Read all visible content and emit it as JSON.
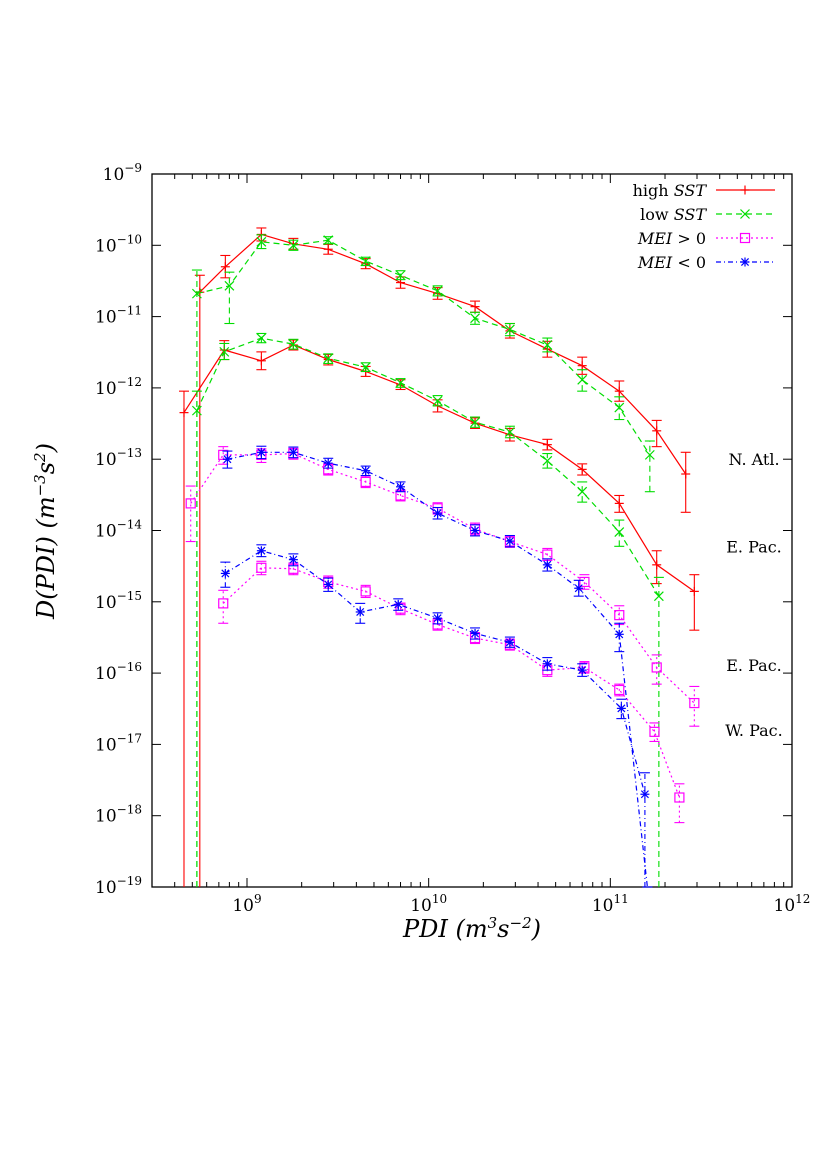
{
  "chart_data": {
    "type": "line",
    "xlabel": "PDI (m³s⁻²)",
    "ylabel": "D(PDI) (m⁻³s²)",
    "x_scale": "log",
    "y_scale": "log",
    "xlim": [
      300000000.0,
      1000000000000.0
    ],
    "ylim": [
      1e-19,
      1e-09
    ],
    "x_ticks": [
      {
        "value": 1000000000.0,
        "label": "10",
        "exp": "9"
      },
      {
        "value": 10000000000.0,
        "label": "10",
        "exp": "10"
      },
      {
        "value": 100000000000.0,
        "label": "10",
        "exp": "11"
      },
      {
        "value": 1000000000000.0,
        "label": "10",
        "exp": "12"
      }
    ],
    "y_ticks": [
      {
        "value": 1e-19,
        "label": "10",
        "exp": "−19"
      },
      {
        "value": 1e-18,
        "label": "10",
        "exp": "−18"
      },
      {
        "value": 1e-17,
        "label": "10",
        "exp": "−17"
      },
      {
        "value": 1e-16,
        "label": "10",
        "exp": "−16"
      },
      {
        "value": 1e-15,
        "label": "10",
        "exp": "−15"
      },
      {
        "value": 1e-14,
        "label": "10",
        "exp": "−14"
      },
      {
        "value": 1e-13,
        "label": "10",
        "exp": "−13"
      },
      {
        "value": 1e-12,
        "label": "10",
        "exp": "−12"
      },
      {
        "value": 1e-11,
        "label": "10",
        "exp": "−11"
      },
      {
        "value": 1e-10,
        "label": "10",
        "exp": "−10"
      },
      {
        "value": 1e-09,
        "label": "10",
        "exp": "−9"
      }
    ],
    "grid": false,
    "legend_position": "top-right",
    "legend": [
      {
        "name": "high SST",
        "prefix": "high ",
        "math": "SST",
        "color": "#ff0000",
        "dash": "none",
        "marker": "plus"
      },
      {
        "name": "low SST",
        "prefix": "low ",
        "math": "SST",
        "color": "#00dd00",
        "dash": "6,4",
        "marker": "cross"
      },
      {
        "name": "MEI > 0",
        "prefix": "",
        "math": "MEI",
        "suffix": " > 0",
        "color": "#ff00ff",
        "dash": "2,3",
        "marker": "square"
      },
      {
        "name": "MEI < 0",
        "prefix": "",
        "math": "MEI",
        "suffix": " < 0",
        "color": "#0000ff",
        "dash": "5,3,1,3",
        "marker": "star"
      }
    ],
    "region_labels": [
      {
        "text": "N. Atl.",
        "y": 1e-13
      },
      {
        "text": "E. Pac.",
        "y": 6e-15
      },
      {
        "text": "E. Pac.",
        "y": 1.3e-16
      },
      {
        "text": "W. Pac.",
        "y": 1.6e-17
      }
    ],
    "series": [
      {
        "group": "N. Atl.",
        "legend_index": 0,
        "color": "#ff0000",
        "dash": "none",
        "marker": "plus",
        "points": [
          {
            "x": 550000000.0,
            "y": 2.2e-11,
            "lo": 1e-19,
            "hi": 3.8e-11
          },
          {
            "x": 760000000.0,
            "y": 5e-11,
            "lo": 3.5e-11,
            "hi": 7.2e-11
          },
          {
            "x": 1200000000.0,
            "y": 1.42e-10,
            "lo": 1.15e-10,
            "hi": 1.75e-10
          },
          {
            "x": 1800000000.0,
            "y": 1.05e-10,
            "lo": 8.8e-11,
            "hi": 1.25e-10
          },
          {
            "x": 2800000000.0,
            "y": 8.8e-11,
            "lo": 7.5e-11,
            "hi": 1.03e-10
          },
          {
            "x": 4500000000.0,
            "y": 5.5e-11,
            "lo": 4.7e-11,
            "hi": 6.5e-11
          },
          {
            "x": 7000000000.0,
            "y": 3e-11,
            "lo": 2.5e-11,
            "hi": 3.6e-11
          },
          {
            "x": 11200000000.0,
            "y": 2.1e-11,
            "lo": 1.75e-11,
            "hi": 2.55e-11
          },
          {
            "x": 18000000000.0,
            "y": 1.38e-11,
            "lo": 1.15e-11,
            "hi": 1.65e-11
          },
          {
            "x": 28000000000.0,
            "y": 6.3e-12,
            "lo": 5e-12,
            "hi": 8e-12
          },
          {
            "x": 45000000000.0,
            "y": 3.5e-12,
            "lo": 2.7e-12,
            "hi": 4.5e-12
          },
          {
            "x": 70000000000.0,
            "y": 2.05e-12,
            "lo": 1.55e-12,
            "hi": 2.7e-12
          },
          {
            "x": 112000000000.0,
            "y": 9e-13,
            "lo": 6.5e-13,
            "hi": 1.25e-12
          },
          {
            "x": 180000000000.0,
            "y": 2.5e-13,
            "lo": 1.5e-13,
            "hi": 3.5e-13
          },
          {
            "x": 260000000000.0,
            "y": 6.2e-14,
            "lo": 1.8e-14,
            "hi": 1.25e-13
          }
        ]
      },
      {
        "group": "N. Atl.",
        "legend_index": 1,
        "color": "#00dd00",
        "dash": "6,4",
        "marker": "cross",
        "points": [
          {
            "x": 530000000.0,
            "y": 2.1e-11,
            "lo": 1e-19,
            "hi": 4.5e-11
          },
          {
            "x": 800000000.0,
            "y": 2.7e-11,
            "lo": 8e-12,
            "hi": 4.2e-11
          },
          {
            "x": 1200000000.0,
            "y": 1.12e-10,
            "lo": 9e-11,
            "hi": 1.4e-10
          },
          {
            "x": 1800000000.0,
            "y": 1e-10,
            "lo": 8.5e-11,
            "hi": 1.18e-10
          },
          {
            "x": 2800000000.0,
            "y": 1.18e-10,
            "lo": 1.05e-10,
            "hi": 1.32e-10
          },
          {
            "x": 4500000000.0,
            "y": 6e-11,
            "lo": 5.2e-11,
            "hi": 6.8e-11
          },
          {
            "x": 7000000000.0,
            "y": 3.8e-11,
            "lo": 3.3e-11,
            "hi": 4.4e-11
          },
          {
            "x": 11200000000.0,
            "y": 2.3e-11,
            "lo": 1.95e-11,
            "hi": 2.7e-11
          },
          {
            "x": 18000000000.0,
            "y": 9.5e-12,
            "lo": 7.8e-12,
            "hi": 1.15e-11
          },
          {
            "x": 28000000000.0,
            "y": 6.6e-12,
            "lo": 5.4e-12,
            "hi": 8e-12
          },
          {
            "x": 45000000000.0,
            "y": 4e-12,
            "lo": 3.2e-12,
            "hi": 5e-12
          },
          {
            "x": 70000000000.0,
            "y": 1.3e-12,
            "lo": 9e-13,
            "hi": 1.8e-12
          },
          {
            "x": 112000000000.0,
            "y": 5.3e-13,
            "lo": 3.6e-13,
            "hi": 7.5e-13
          },
          {
            "x": 165000000000.0,
            "y": 1.15e-13,
            "lo": 3.5e-14,
            "hi": 1.8e-13
          }
        ]
      },
      {
        "group": "E. Pac.",
        "legend_index": 0,
        "color": "#ff0000",
        "dash": "none",
        "marker": "plus",
        "points": [
          {
            "x": 450000000.0,
            "y": 4.5e-13,
            "lo": 1e-19,
            "hi": 9e-13
          },
          {
            "x": 750000000.0,
            "y": 3.4e-12,
            "lo": 2.5e-12,
            "hi": 4.6e-12
          },
          {
            "x": 1200000000.0,
            "y": 2.4e-12,
            "lo": 1.8e-12,
            "hi": 3.2e-12
          },
          {
            "x": 1800000000.0,
            "y": 4e-12,
            "lo": 3.4e-12,
            "hi": 4.7e-12
          },
          {
            "x": 2800000000.0,
            "y": 2.5e-12,
            "lo": 2.1e-12,
            "hi": 2.95e-12
          },
          {
            "x": 4500000000.0,
            "y": 1.7e-12,
            "lo": 1.45e-12,
            "hi": 2e-12
          },
          {
            "x": 7000000000.0,
            "y": 1.1e-12,
            "lo": 9.5e-13,
            "hi": 1.3e-12
          },
          {
            "x": 11200000000.0,
            "y": 5.6e-13,
            "lo": 4.6e-13,
            "hi": 6.8e-13
          },
          {
            "x": 18000000000.0,
            "y": 3.2e-13,
            "lo": 2.7e-13,
            "hi": 3.8e-13
          },
          {
            "x": 28000000000.0,
            "y": 2.2e-13,
            "lo": 1.8e-13,
            "hi": 2.7e-13
          },
          {
            "x": 45000000000.0,
            "y": 1.6e-13,
            "lo": 1.35e-13,
            "hi": 1.9e-13
          },
          {
            "x": 70000000000.0,
            "y": 7.2e-14,
            "lo": 6e-14,
            "hi": 8.6e-14
          },
          {
            "x": 112000000000.0,
            "y": 2.4e-14,
            "lo": 1.8e-14,
            "hi": 3.1e-14
          },
          {
            "x": 180000000000.0,
            "y": 3.3e-15,
            "lo": 1.8e-15,
            "hi": 5.2e-15
          },
          {
            "x": 290000000000.0,
            "y": 1.4e-15,
            "lo": 4e-16,
            "hi": 2.4e-15
          }
        ]
      },
      {
        "group": "E. Pac.",
        "legend_index": 1,
        "color": "#00dd00",
        "dash": "6,4",
        "marker": "cross",
        "points": [
          {
            "x": 530000000.0,
            "y": 4.8e-13,
            "lo": 1e-19,
            "hi": 9e-13
          },
          {
            "x": 750000000.0,
            "y": 3.2e-12,
            "lo": 2.5e-12,
            "hi": 4.2e-12
          },
          {
            "x": 1200000000.0,
            "y": 5e-12,
            "lo": 4.3e-12,
            "hi": 5.8e-12
          },
          {
            "x": 1800000000.0,
            "y": 4.1e-12,
            "lo": 3.5e-12,
            "hi": 4.8e-12
          },
          {
            "x": 2800000000.0,
            "y": 2.6e-12,
            "lo": 2.2e-12,
            "hi": 3e-12
          },
          {
            "x": 4500000000.0,
            "y": 1.95e-12,
            "lo": 1.7e-12,
            "hi": 2.25e-12
          },
          {
            "x": 7000000000.0,
            "y": 1.18e-12,
            "lo": 1.02e-12,
            "hi": 1.35e-12
          },
          {
            "x": 11200000000.0,
            "y": 6.6e-13,
            "lo": 5.6e-13,
            "hi": 7.8e-13
          },
          {
            "x": 18000000000.0,
            "y": 3.3e-13,
            "lo": 2.8e-13,
            "hi": 3.9e-13
          },
          {
            "x": 28000000000.0,
            "y": 2.4e-13,
            "lo": 2e-13,
            "hi": 2.9e-13
          },
          {
            "x": 45000000000.0,
            "y": 9.5e-14,
            "lo": 7.5e-14,
            "hi": 1.2e-13
          },
          {
            "x": 70000000000.0,
            "y": 3.5e-14,
            "lo": 2.5e-14,
            "hi": 4.8e-14
          },
          {
            "x": 112000000000.0,
            "y": 9.5e-15,
            "lo": 6e-15,
            "hi": 1.4e-14
          },
          {
            "x": 185000000000.0,
            "y": 1.2e-15,
            "lo": 1e-19,
            "hi": 2.2e-15
          }
        ]
      },
      {
        "group": "E. Pac.",
        "legend_index": 2,
        "color": "#ff00ff",
        "dash": "2,3",
        "marker": "square",
        "points": [
          {
            "x": 490000000.0,
            "y": 2.4e-14,
            "lo": 7e-15,
            "hi": 4.2e-14
          },
          {
            "x": 740000000.0,
            "y": 1.15e-13,
            "lo": 8.5e-14,
            "hi": 1.5e-13
          },
          {
            "x": 1200000000.0,
            "y": 1.15e-13,
            "lo": 9e-14,
            "hi": 1.4e-13
          },
          {
            "x": 1800000000.0,
            "y": 1.2e-13,
            "lo": 1e-13,
            "hi": 1.42e-13
          },
          {
            "x": 2800000000.0,
            "y": 7.2e-14,
            "lo": 6e-14,
            "hi": 8.6e-14
          },
          {
            "x": 4500000000.0,
            "y": 4.8e-14,
            "lo": 4e-14,
            "hi": 5.8e-14
          },
          {
            "x": 7000000000.0,
            "y": 3.1e-14,
            "lo": 2.6e-14,
            "hi": 3.7e-14
          },
          {
            "x": 11200000000.0,
            "y": 2.05e-14,
            "lo": 1.7e-14,
            "hi": 2.45e-14
          },
          {
            "x": 18000000000.0,
            "y": 1.05e-14,
            "lo": 8.7e-15,
            "hi": 1.27e-14
          },
          {
            "x": 28000000000.0,
            "y": 7e-15,
            "lo": 5.8e-15,
            "hi": 8.4e-15
          },
          {
            "x": 45000000000.0,
            "y": 4.6e-15,
            "lo": 3.8e-15,
            "hi": 5.6e-15
          },
          {
            "x": 72000000000.0,
            "y": 1.9e-15,
            "lo": 1.5e-15,
            "hi": 2.4e-15
          },
          {
            "x": 112000000000.0,
            "y": 6.5e-16,
            "lo": 4.8e-16,
            "hi": 8.8e-16
          },
          {
            "x": 180000000000.0,
            "y": 1.2e-16,
            "lo": 7e-17,
            "hi": 1.8e-16
          },
          {
            "x": 290000000000.0,
            "y": 3.8e-17,
            "lo": 1.8e-17,
            "hi": 6.5e-17
          }
        ]
      },
      {
        "group": "E. Pac.",
        "legend_index": 3,
        "color": "#0000ff",
        "dash": "5,3,1,3",
        "marker": "star",
        "points": [
          {
            "x": 780000000.0,
            "y": 1e-13,
            "lo": 7.5e-14,
            "hi": 1.3e-13
          },
          {
            "x": 1200000000.0,
            "y": 1.25e-13,
            "lo": 1.02e-13,
            "hi": 1.52e-13
          },
          {
            "x": 1800000000.0,
            "y": 1.25e-13,
            "lo": 1.05e-13,
            "hi": 1.48e-13
          },
          {
            "x": 2800000000.0,
            "y": 8.8e-14,
            "lo": 7.5e-14,
            "hi": 1.03e-13
          },
          {
            "x": 4500000000.0,
            "y": 6.9e-14,
            "lo": 5.9e-14,
            "hi": 8e-14
          },
          {
            "x": 7000000000.0,
            "y": 4.1e-14,
            "lo": 3.5e-14,
            "hi": 4.8e-14
          },
          {
            "x": 11200000000.0,
            "y": 1.75e-14,
            "lo": 1.45e-14,
            "hi": 2.1e-14
          },
          {
            "x": 18000000000.0,
            "y": 1e-14,
            "lo": 8.4e-15,
            "hi": 1.2e-14
          },
          {
            "x": 28000000000.0,
            "y": 7.1e-15,
            "lo": 5.9e-15,
            "hi": 8.5e-15
          },
          {
            "x": 45000000000.0,
            "y": 3.3e-15,
            "lo": 2.7e-15,
            "hi": 4e-15
          },
          {
            "x": 67000000000.0,
            "y": 1.55e-15,
            "lo": 1.2e-15,
            "hi": 2e-15
          },
          {
            "x": 112000000000.0,
            "y": 3.5e-16,
            "lo": 2e-16,
            "hi": 5e-16
          },
          {
            "x": 160000000000.0,
            "y": 1e-19,
            "lo": 1e-19,
            "hi": 1e-19
          }
        ]
      },
      {
        "group": "W. Pac.",
        "legend_index": 2,
        "color": "#ff00ff",
        "dash": "2,3",
        "marker": "square",
        "points": [
          {
            "x": 740000000.0,
            "y": 9.5e-16,
            "lo": 5e-16,
            "hi": 1.45e-15
          },
          {
            "x": 1200000000.0,
            "y": 3e-15,
            "lo": 2.4e-15,
            "hi": 3.7e-15
          },
          {
            "x": 1800000000.0,
            "y": 2.9e-15,
            "lo": 2.4e-15,
            "hi": 3.5e-15
          },
          {
            "x": 2800000000.0,
            "y": 1.9e-15,
            "lo": 1.55e-15,
            "hi": 2.3e-15
          },
          {
            "x": 4500000000.0,
            "y": 1.4e-15,
            "lo": 1.15e-15,
            "hi": 1.7e-15
          },
          {
            "x": 7000000000.0,
            "y": 8e-16,
            "lo": 6.6e-16,
            "hi": 9.6e-16
          },
          {
            "x": 11200000000.0,
            "y": 4.8e-16,
            "lo": 4e-16,
            "hi": 5.8e-16
          },
          {
            "x": 18000000000.0,
            "y": 3.1e-16,
            "lo": 2.6e-16,
            "hi": 3.7e-16
          },
          {
            "x": 28000000000.0,
            "y": 2.5e-16,
            "lo": 2.1e-16,
            "hi": 3e-16
          },
          {
            "x": 45000000000.0,
            "y": 1.1e-16,
            "lo": 9e-17,
            "hi": 1.35e-16
          },
          {
            "x": 72000000000.0,
            "y": 1.2e-16,
            "lo": 1e-16,
            "hi": 1.45e-16
          },
          {
            "x": 112000000000.0,
            "y": 5.8e-17,
            "lo": 4.8e-17,
            "hi": 7e-17
          },
          {
            "x": 175000000000.0,
            "y": 1.5e-17,
            "lo": 1.1e-17,
            "hi": 2e-17
          },
          {
            "x": 240000000000.0,
            "y": 1.8e-18,
            "lo": 8e-19,
            "hi": 2.8e-18
          }
        ]
      },
      {
        "group": "W. Pac.",
        "legend_index": 3,
        "color": "#0000ff",
        "dash": "5,3,1,3",
        "marker": "star",
        "points": [
          {
            "x": 760000000.0,
            "y": 2.5e-15,
            "lo": 1.6e-15,
            "hi": 3.6e-15
          },
          {
            "x": 1200000000.0,
            "y": 5.2e-15,
            "lo": 4.3e-15,
            "hi": 6.3e-15
          },
          {
            "x": 1800000000.0,
            "y": 3.9e-15,
            "lo": 3.2e-15,
            "hi": 4.7e-15
          },
          {
            "x": 2800000000.0,
            "y": 1.75e-15,
            "lo": 1.4e-15,
            "hi": 2.15e-15
          },
          {
            "x": 4200000000.0,
            "y": 7.2e-16,
            "lo": 5e-16,
            "hi": 9.5e-16
          },
          {
            "x": 6800000000.0,
            "y": 9.2e-16,
            "lo": 7.6e-16,
            "hi": 1.1e-15
          },
          {
            "x": 11200000000.0,
            "y": 5.9e-16,
            "lo": 4.9e-16,
            "hi": 7e-16
          },
          {
            "x": 18000000000.0,
            "y": 3.6e-16,
            "lo": 3e-16,
            "hi": 4.3e-16
          },
          {
            "x": 28000000000.0,
            "y": 2.7e-16,
            "lo": 2.3e-16,
            "hi": 3.2e-16
          },
          {
            "x": 45000000000.0,
            "y": 1.35e-16,
            "lo": 1.1e-16,
            "hi": 1.65e-16
          },
          {
            "x": 70000000000.0,
            "y": 1.1e-16,
            "lo": 9e-17,
            "hi": 1.35e-16
          },
          {
            "x": 115000000000.0,
            "y": 3.2e-17,
            "lo": 2.3e-17,
            "hi": 4.3e-17
          },
          {
            "x": 155000000000.0,
            "y": 2e-18,
            "lo": 1e-19,
            "hi": 4e-18
          }
        ]
      }
    ]
  }
}
